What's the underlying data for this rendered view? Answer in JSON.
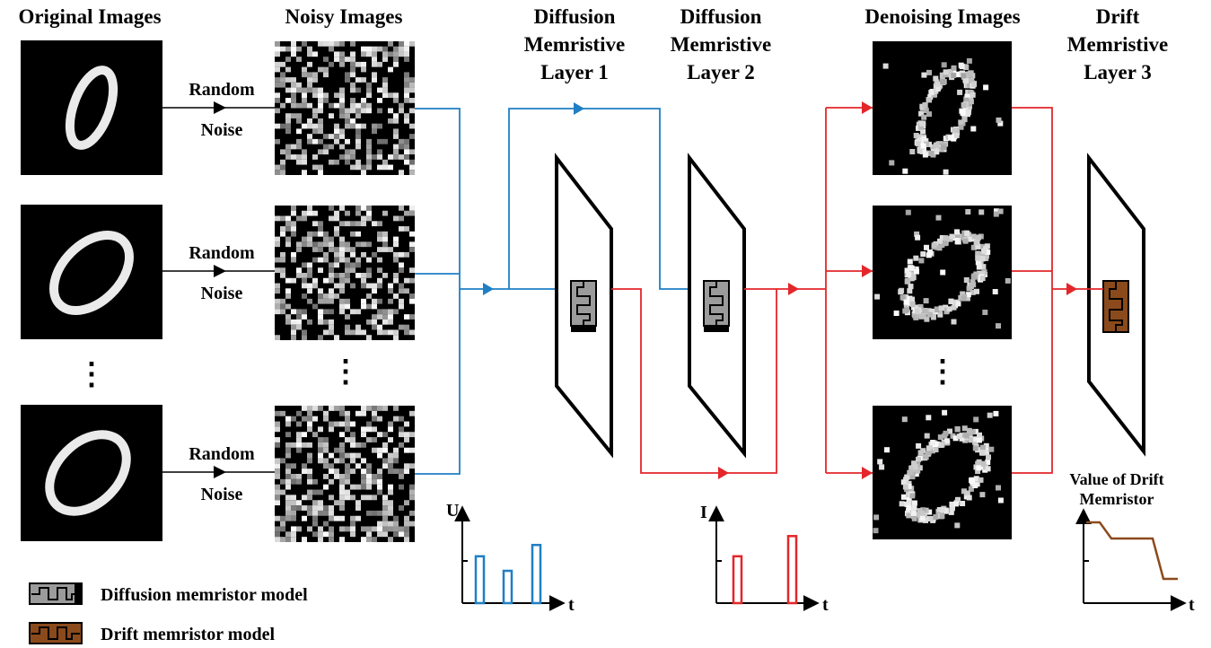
{
  "columns": {
    "original": "Original Images",
    "noisy": "Noisy Images",
    "diffusion1": [
      "Diffusion",
      "Memristive",
      "Layer 1"
    ],
    "diffusion2": [
      "Diffusion",
      "Memristive",
      "Layer 2"
    ],
    "denoising": "Denoising Images",
    "drift": [
      "Drift",
      "Memristive",
      "Layer 3"
    ]
  },
  "noise_label": [
    "Random",
    "Noise"
  ],
  "ellipsis": "⋮",
  "voltage_plot": {
    "ylabel": "U",
    "xlabel": "t",
    "pulse_heights": [
      0.58,
      0.4,
      0.72
    ]
  },
  "current_plot": {
    "ylabel": "I",
    "xlabel": "t",
    "pulse_heights": [
      0.58,
      0.83
    ]
  },
  "drift_plot": {
    "title": [
      "Value of Drift",
      "Memristor"
    ],
    "xlabel": "t",
    "levels": [
      1.0,
      0.8,
      0.8,
      0.3
    ]
  },
  "legend": [
    {
      "label": "Diffusion memristor model",
      "fill": "#9b9b9b"
    },
    {
      "label": "Drift memristor model",
      "fill": "#8b4a1c"
    }
  ],
  "colors": {
    "blue": "#1f7fc4",
    "red": "#e3262a",
    "brown": "#8b4a1c",
    "gray": "#9b9b9b"
  }
}
